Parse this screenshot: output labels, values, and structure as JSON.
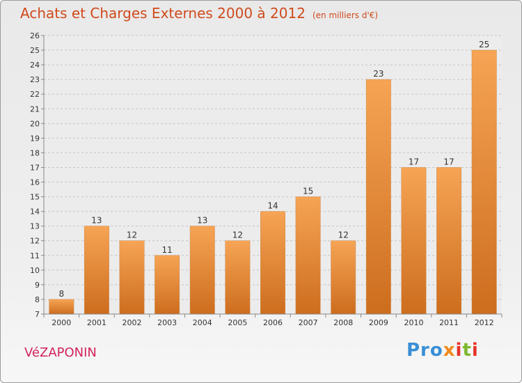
{
  "title": "Achats et Charges Externes 2000 à 2012",
  "subtitle": "(en milliers d'€)",
  "commune": "VéZAPONIN",
  "logo": {
    "p1": "Pro",
    "p2": "x",
    "p3": "i",
    "p4": "t",
    "p5": "i"
  },
  "colors": {
    "bar_top": "#f6a455",
    "bar_bottom": "#cd6d1e",
    "title": "#d04a1c",
    "commune": "#d2245a"
  },
  "chart_data": {
    "type": "bar",
    "title": "Achats et Charges Externes 2000 à 2012",
    "subtitle": "(en milliers d'€)",
    "categories": [
      "2000",
      "2001",
      "2002",
      "2003",
      "2004",
      "2005",
      "2006",
      "2007",
      "2008",
      "2009",
      "2010",
      "2011",
      "2012"
    ],
    "values": [
      8,
      13,
      12,
      11,
      13,
      12,
      14,
      15,
      12,
      23,
      17,
      17,
      25
    ],
    "ylim": [
      7,
      26
    ],
    "yticks": [
      7,
      8,
      9,
      10,
      11,
      12,
      13,
      14,
      15,
      16,
      17,
      18,
      19,
      20,
      21,
      22,
      23,
      24,
      25,
      26
    ],
    "grid": true,
    "xlabel": "",
    "ylabel": ""
  }
}
